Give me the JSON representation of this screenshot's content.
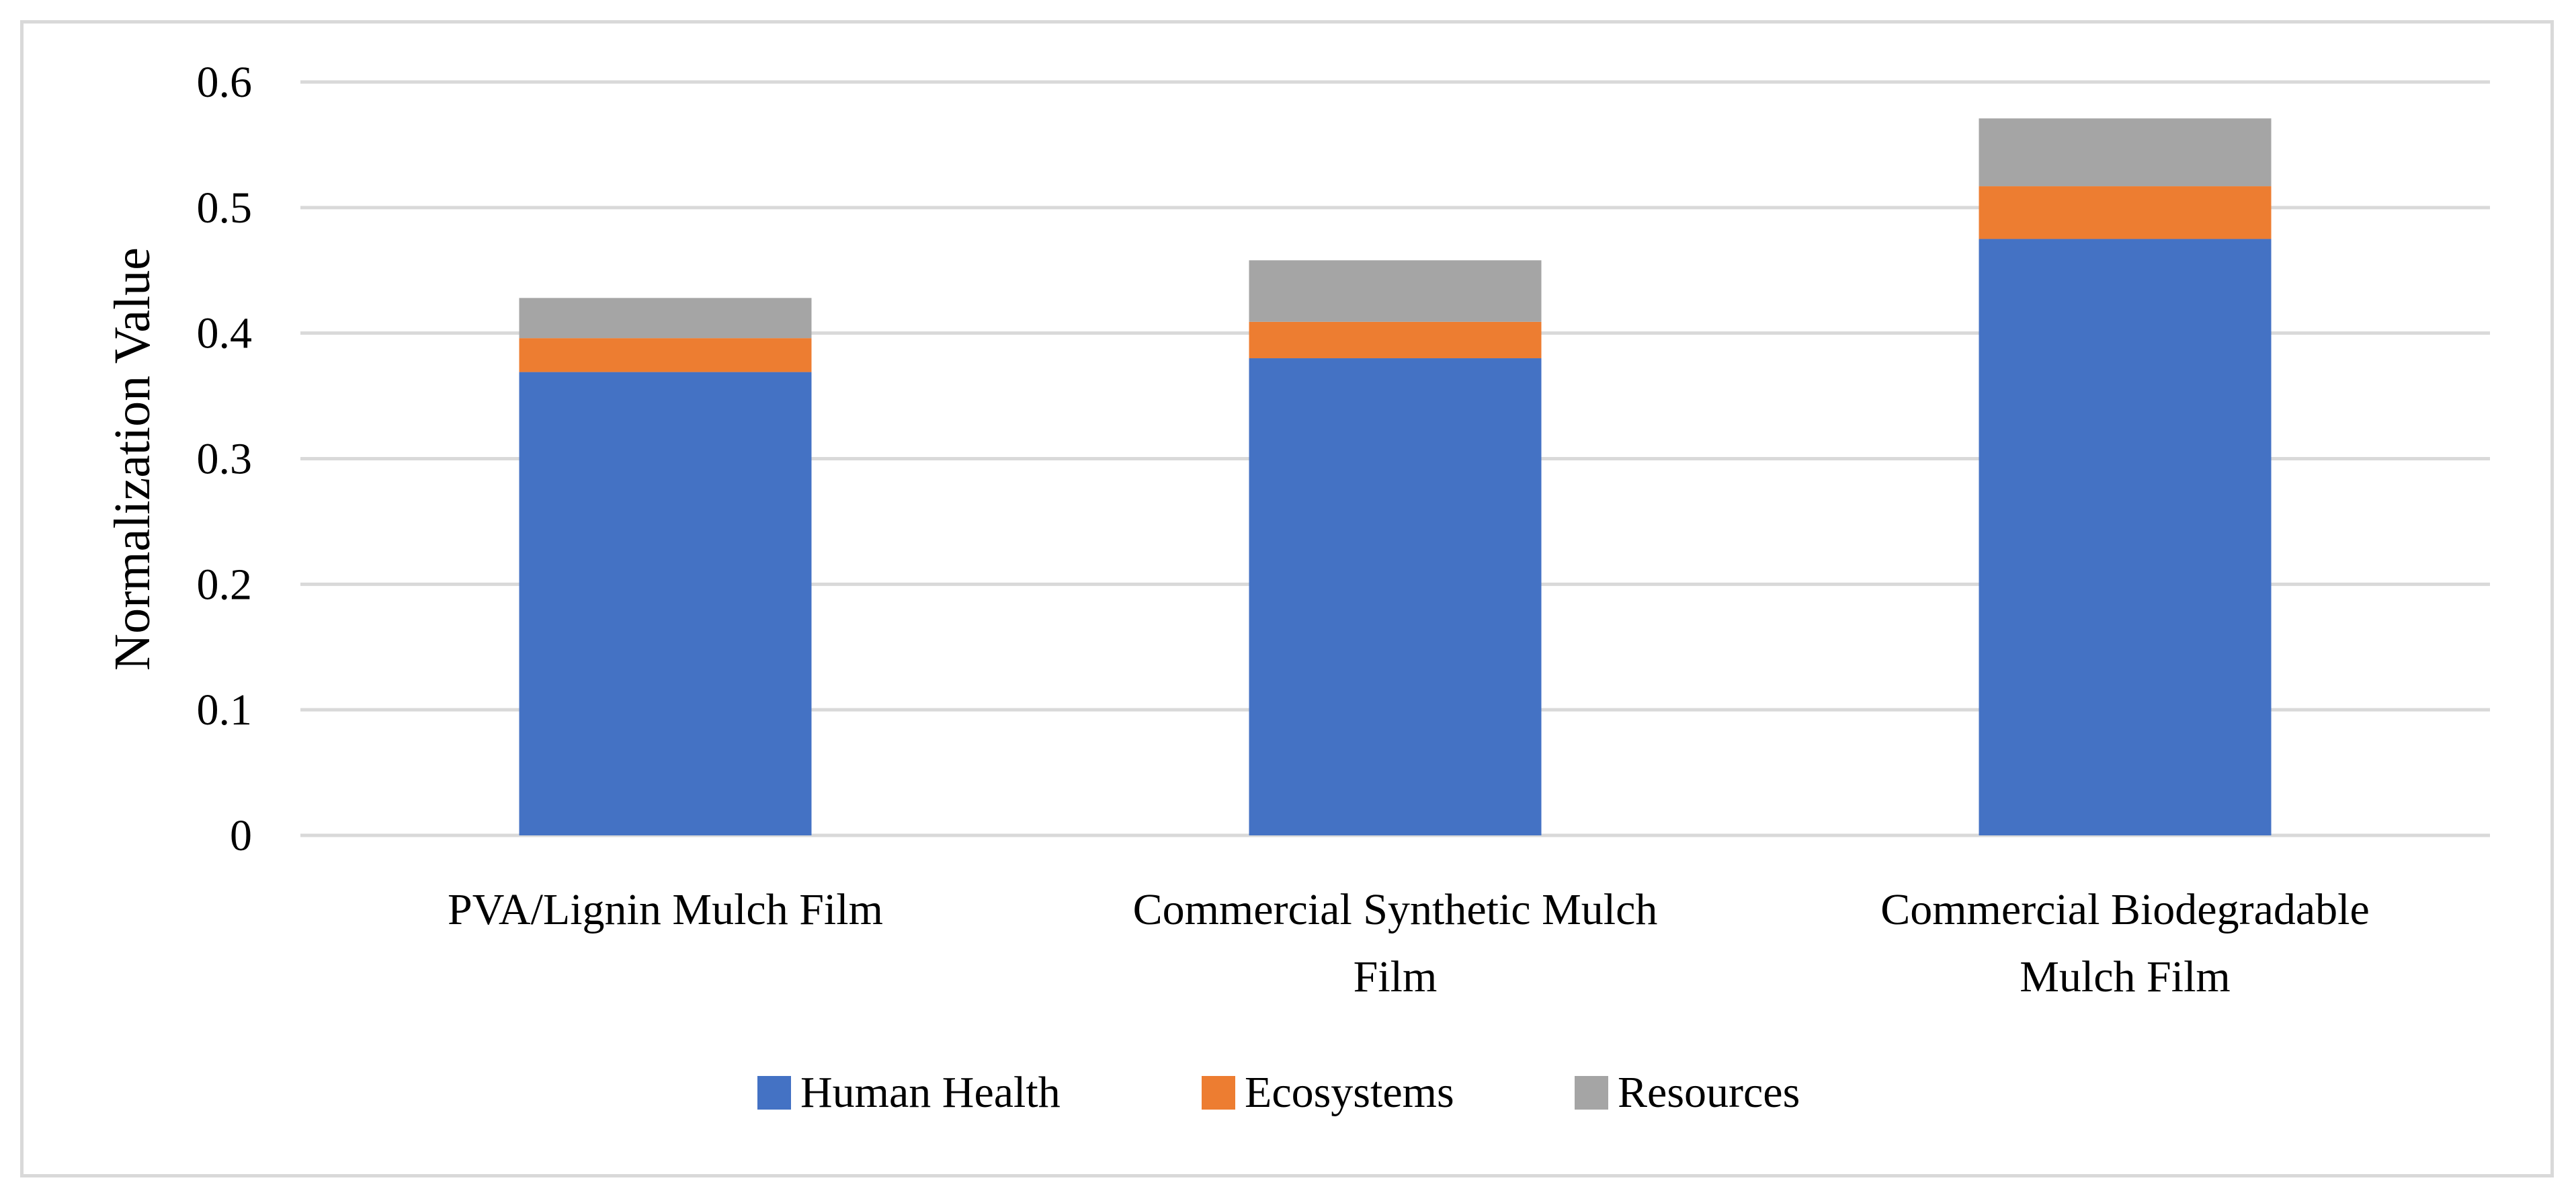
{
  "chart_data": {
    "type": "bar",
    "stacked": true,
    "title": "",
    "xlabel": "",
    "ylabel": "Normalization Value",
    "ylim": [
      0,
      0.6
    ],
    "yticks": [
      "0",
      "0.1",
      "0.2",
      "0.3",
      "0.4",
      "0.5",
      "0.6"
    ],
    "grid": true,
    "legend_position": "bottom",
    "categories": [
      [
        "PVA/Lignin Mulch Film"
      ],
      [
        "Commercial Synthetic Mulch",
        "Film"
      ],
      [
        "Commercial Biodegradable",
        "Mulch Film"
      ]
    ],
    "series": [
      {
        "name": "Human Health",
        "color": "#4472c4",
        "values": [
          0.369,
          0.38,
          0.475
        ]
      },
      {
        "name": "Ecosystems",
        "color": "#ed7d31",
        "values": [
          0.027,
          0.029,
          0.042
        ]
      },
      {
        "name": "Resources",
        "color": "#a5a5a5",
        "values": [
          0.032,
          0.049,
          0.054
        ]
      }
    ]
  }
}
